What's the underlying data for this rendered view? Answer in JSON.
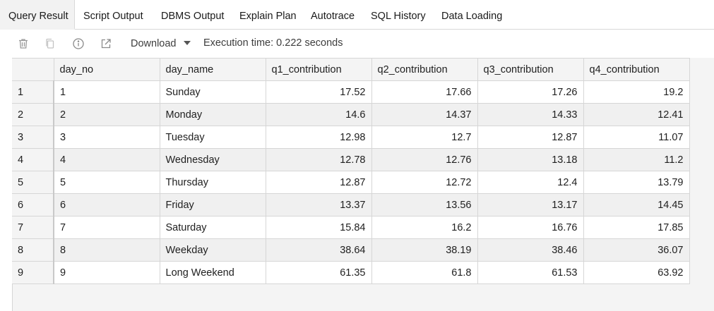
{
  "tabs": [
    {
      "label": "Query Result",
      "active": true
    },
    {
      "label": "Script Output",
      "active": false
    },
    {
      "label": "DBMS Output",
      "active": false
    },
    {
      "label": "Explain Plan",
      "active": false
    },
    {
      "label": "Autotrace",
      "active": false
    },
    {
      "label": "SQL History",
      "active": false
    },
    {
      "label": "Data Loading",
      "active": false
    }
  ],
  "toolbar": {
    "download_label": "Download",
    "execution_time": "Execution time: 0.222 seconds",
    "icons": [
      "trash-icon",
      "copy-icon",
      "info-icon",
      "open-external-icon"
    ]
  },
  "grid": {
    "columns": [
      "day_no",
      "day_name",
      "q1_contribution",
      "q2_contribution",
      "q3_contribution",
      "q4_contribution"
    ],
    "rows": [
      {
        "num": "1",
        "cells": [
          "1",
          "Sunday",
          "17.52",
          "17.66",
          "17.26",
          "19.2"
        ]
      },
      {
        "num": "2",
        "cells": [
          "2",
          "Monday",
          "14.6",
          "14.37",
          "14.33",
          "12.41"
        ]
      },
      {
        "num": "3",
        "cells": [
          "3",
          "Tuesday",
          "12.98",
          "12.7",
          "12.87",
          "11.07"
        ]
      },
      {
        "num": "4",
        "cells": [
          "4",
          "Wednesday",
          "12.78",
          "12.76",
          "13.18",
          "11.2"
        ]
      },
      {
        "num": "5",
        "cells": [
          "5",
          "Thursday",
          "12.87",
          "12.72",
          "12.4",
          "13.79"
        ]
      },
      {
        "num": "6",
        "cells": [
          "6",
          "Friday",
          "13.37",
          "13.56",
          "13.17",
          "14.45"
        ]
      },
      {
        "num": "7",
        "cells": [
          "7",
          "Saturday",
          "15.84",
          "16.2",
          "16.76",
          "17.85"
        ]
      },
      {
        "num": "8",
        "cells": [
          "8",
          "Weekday",
          "38.64",
          "38.19",
          "38.46",
          "36.07"
        ]
      },
      {
        "num": "9",
        "cells": [
          "9",
          "Long Weekend",
          "61.35",
          "61.8",
          "61.53",
          "63.92"
        ]
      }
    ]
  }
}
